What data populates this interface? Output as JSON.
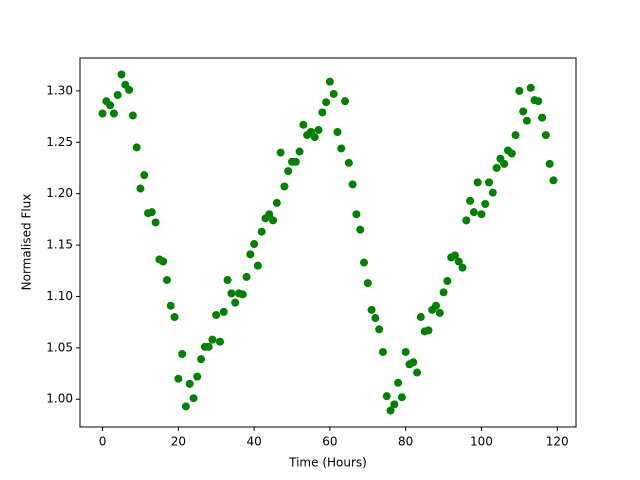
{
  "chart_data": {
    "type": "scatter",
    "x_label": "Time (Hours)",
    "y_label": "Normalised Flux",
    "x": [
      0,
      1,
      2,
      3,
      4,
      5,
      6,
      7,
      8,
      9,
      10,
      11,
      12,
      13,
      14,
      15,
      16,
      17,
      18,
      19,
      20,
      21,
      22,
      23,
      24,
      25,
      26,
      27,
      28,
      29,
      30,
      31,
      32,
      33,
      34,
      35,
      36,
      37,
      38,
      39,
      40,
      41,
      42,
      43,
      44,
      45,
      46,
      47,
      48,
      49,
      50,
      51,
      52,
      53,
      54,
      55,
      56,
      57,
      58,
      59,
      60,
      61,
      62,
      63,
      64,
      65,
      66,
      67,
      68,
      69,
      70,
      71,
      72,
      73,
      74,
      75,
      76,
      77,
      78,
      79,
      80,
      81,
      82,
      83,
      84,
      85,
      86,
      87,
      88,
      89,
      90,
      91,
      92,
      93,
      94,
      95,
      96,
      97,
      98,
      99,
      100,
      101,
      102,
      103,
      104,
      105,
      106,
      107,
      108,
      109,
      110,
      111,
      112,
      113,
      114,
      115,
      116,
      117,
      118,
      119
    ],
    "series": [
      {
        "color": "#008000",
        "values": [
          1.278,
          1.29,
          1.286,
          1.278,
          1.296,
          1.316,
          1.306,
          1.301,
          1.276,
          1.245,
          1.205,
          1.218,
          1.181,
          1.182,
          1.172,
          1.136,
          1.134,
          1.116,
          1.091,
          1.08,
          1.02,
          1.044,
          0.993,
          1.015,
          1.001,
          1.022,
          1.039,
          1.051,
          1.051,
          1.058,
          1.082,
          1.056,
          1.085,
          1.116,
          1.103,
          1.094,
          1.103,
          1.102,
          1.119,
          1.141,
          1.151,
          1.13,
          1.163,
          1.176,
          1.18,
          1.174,
          1.191,
          1.24,
          1.207,
          1.222,
          1.231,
          1.231,
          1.241,
          1.267,
          1.257,
          1.26,
          1.255,
          1.262,
          1.279,
          1.289,
          1.309,
          1.297,
          1.26,
          1.244,
          1.29,
          1.23,
          1.209,
          1.18,
          1.165,
          1.133,
          1.113,
          1.087,
          1.079,
          1.068,
          1.046,
          1.003,
          0.989,
          0.995,
          1.016,
          1.002,
          1.046,
          1.034,
          1.036,
          1.026,
          1.08,
          1.066,
          1.067,
          1.087,
          1.091,
          1.084,
          1.104,
          1.115,
          1.138,
          1.14,
          1.134,
          1.128,
          1.174,
          1.193,
          1.182,
          1.211,
          1.18,
          1.19,
          1.211,
          1.201,
          1.225,
          1.234,
          1.229,
          1.242,
          1.239,
          1.257,
          1.3,
          1.28,
          1.271,
          1.303,
          1.291,
          1.29,
          1.274,
          1.257,
          1.229,
          1.213
        ]
      }
    ],
    "xlim": [
      -5.95,
      124.95
    ],
    "xticks": [
      0,
      20,
      40,
      60,
      80,
      100,
      120
    ],
    "ylim": [
      0.973,
      1.332
    ],
    "yticks": [
      {
        "value": 1.0,
        "label": "1.00"
      },
      1.05,
      {
        "value": 1.1,
        "label": "1.10"
      },
      1.15,
      {
        "value": 1.2,
        "label": "1.20"
      },
      1.25,
      {
        "value": 1.3,
        "label": "1.30"
      }
    ]
  }
}
